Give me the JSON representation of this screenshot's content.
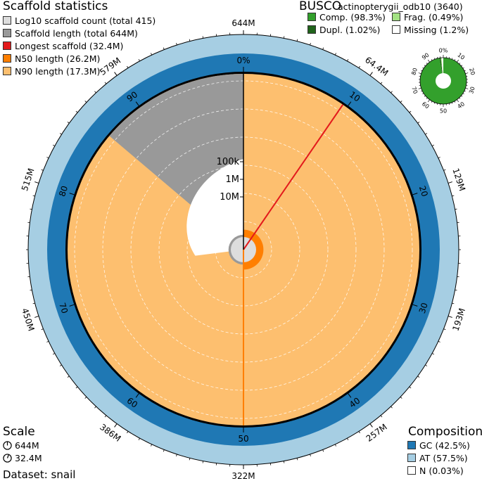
{
  "scaffold_stats": {
    "title": "Scaffold statistics",
    "items": [
      {
        "label": "Log10 scaffold count (total 415)",
        "color": "#dddddd"
      },
      {
        "label": "Scaffold length (total 644M)",
        "color": "#999999"
      },
      {
        "label": "Longest scaffold (32.4M)",
        "color": "#e31a1c"
      },
      {
        "label": "N50 length (26.2M)",
        "color": "#ff7f00"
      },
      {
        "label": "N90 length (17.3M)",
        "color": "#fdbf6f"
      }
    ]
  },
  "busco": {
    "title": "BUSCO",
    "lineage": "actinopterygii_odb10 (3640)",
    "items": [
      {
        "label": "Comp. (98.3%)",
        "color": "#33a02c"
      },
      {
        "label": "Frag. (0.49%)",
        "color": "#a3e283"
      },
      {
        "label": "Dupl. (1.02%)",
        "color": "#20641b"
      },
      {
        "label": "Missing (1.2%)",
        "color": "#ffffff"
      }
    ],
    "ticks": [
      "0%",
      "10",
      "20",
      "30",
      "40",
      "50",
      "60",
      "70",
      "80",
      "90"
    ]
  },
  "scale": {
    "title": "Scale",
    "items": [
      "644M",
      "32.4M"
    ]
  },
  "dataset": "Dataset: snail",
  "composition": {
    "title": "Composition",
    "items": [
      {
        "label": "GC (42.5%)",
        "color": "#1f78b4"
      },
      {
        "label": "AT (57.5%)",
        "color": "#a6cee3"
      },
      {
        "label": "N (0.03%)",
        "color": "#ffffff"
      }
    ]
  },
  "chart_data": {
    "type": "snail",
    "assembly_span_labels": [
      "644M",
      "64.4M",
      "129M",
      "193M",
      "257M",
      "322M",
      "386M",
      "450M",
      "515M",
      "579M"
    ],
    "percent_ticks": [
      "0%",
      "10",
      "20",
      "30",
      "40",
      "50",
      "60",
      "70",
      "80",
      "90"
    ],
    "radial_scale_labels": [
      "100k",
      "1M",
      "10M"
    ],
    "total_scaffolds": 415,
    "total_length_mb": 644,
    "longest_scaffold_mb": 32.4,
    "n50_mb": 26.2,
    "n90_mb": 17.3,
    "gc_percent": 42.5,
    "at_percent": 57.5,
    "n_percent": 0.03,
    "busco": {
      "complete": 98.3,
      "fragmented": 0.49,
      "duplicated": 1.02,
      "missing": 1.2,
      "total": 3640
    }
  }
}
